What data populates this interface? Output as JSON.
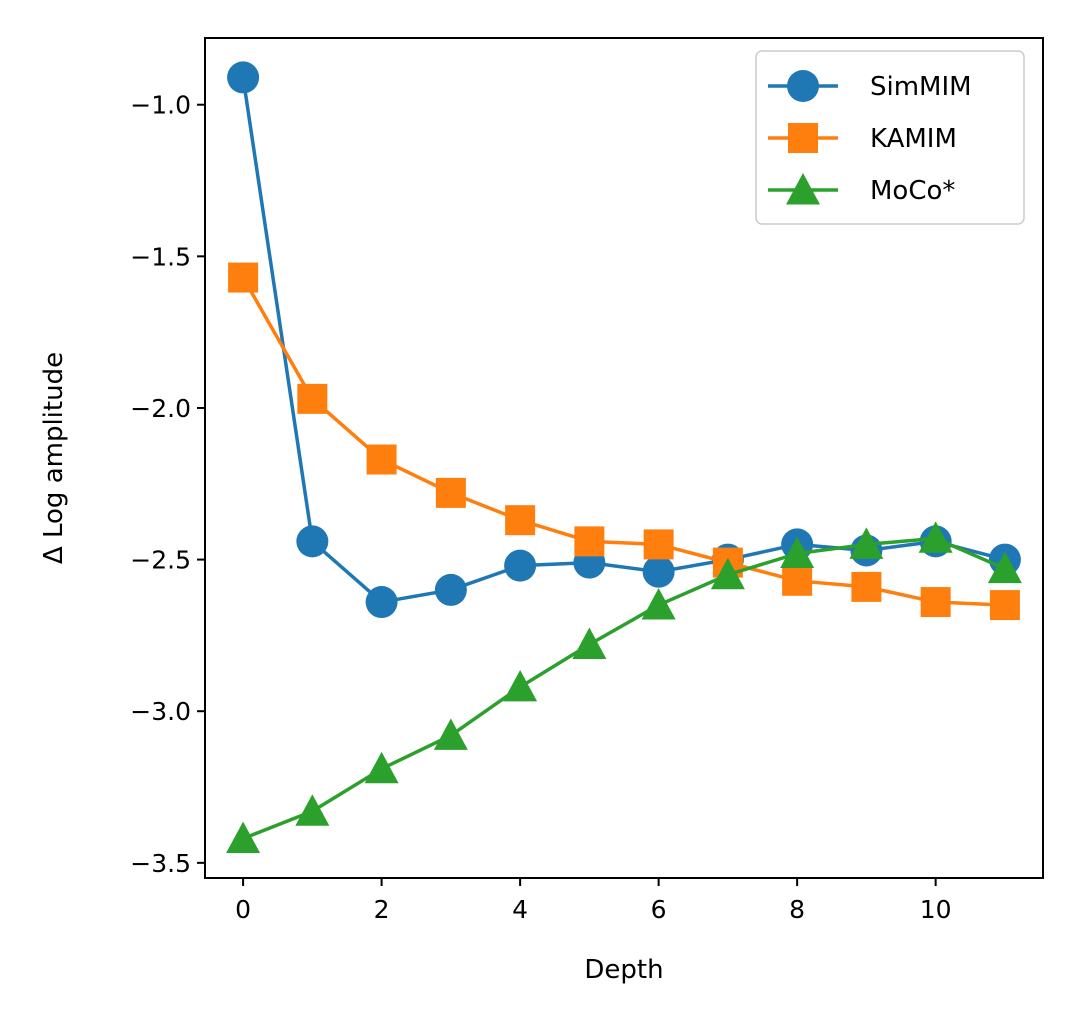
{
  "chart_data": {
    "type": "line",
    "title": "",
    "xlabel": "Depth",
    "ylabel": "Δ Log amplitude",
    "xlim": [
      -0.55,
      11.55
    ],
    "ylim": [
      -3.55,
      -0.78
    ],
    "xticks": [
      0,
      2,
      4,
      6,
      8,
      10
    ],
    "yticks": [
      -1.0,
      -1.5,
      -2.0,
      -2.5,
      -3.0,
      -3.5
    ],
    "xtick_labels": [
      "0",
      "2",
      "4",
      "6",
      "8",
      "10"
    ],
    "ytick_labels": [
      "−1.0",
      "−1.5",
      "−2.0",
      "−2.5",
      "−3.0",
      "−3.5"
    ],
    "grid": false,
    "legend_position": "top-right",
    "x": [
      0,
      1,
      2,
      3,
      4,
      5,
      6,
      7,
      8,
      9,
      10,
      11
    ],
    "series": [
      {
        "name": "SimMIM",
        "color": "#1f77b4",
        "marker": "circle",
        "values": [
          -0.91,
          -2.44,
          -2.64,
          -2.6,
          -2.52,
          -2.51,
          -2.54,
          -2.5,
          -2.45,
          -2.47,
          -2.44,
          -2.5
        ]
      },
      {
        "name": "KAMIM",
        "color": "#ff7f0e",
        "marker": "square",
        "values": [
          -1.57,
          -1.97,
          -2.17,
          -2.28,
          -2.37,
          -2.44,
          -2.45,
          -2.51,
          -2.57,
          -2.59,
          -2.64,
          -2.65
        ]
      },
      {
        "name": "MoCo*",
        "color": "#2ca02c",
        "marker": "triangle",
        "values": [
          -3.42,
          -3.33,
          -3.19,
          -3.08,
          -2.92,
          -2.78,
          -2.65,
          -2.55,
          -2.48,
          -2.45,
          -2.43,
          -2.53
        ]
      }
    ]
  }
}
